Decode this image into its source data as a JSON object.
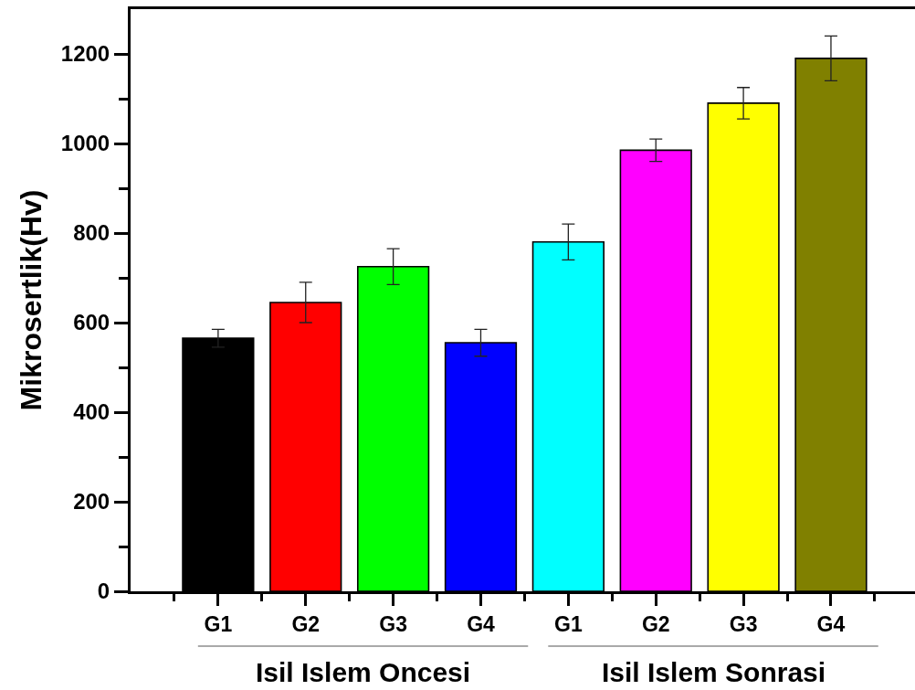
{
  "chart_data": {
    "type": "bar",
    "ylabel": "Mikrosertlik(Hv)",
    "categories": [
      "G1",
      "G2",
      "G3",
      "G4",
      "G1",
      "G2",
      "G3",
      "G4"
    ],
    "values": [
      565,
      645,
      725,
      555,
      780,
      985,
      1090,
      1190
    ],
    "colors": [
      "#000000",
      "#ff0000",
      "#00ff00",
      "#0000ff",
      "#00ffff",
      "#ff00ff",
      "#ffff00",
      "#808000"
    ],
    "errors": [
      20,
      45,
      40,
      30,
      40,
      25,
      35,
      50
    ],
    "ylim": [
      0,
      1300
    ],
    "yticks": [
      0,
      {
        "value": 100,
        "label": null
      },
      200,
      {
        "value": 300,
        "label": null
      },
      400,
      {
        "value": 500,
        "label": null
      },
      600,
      {
        "value": 700,
        "label": null
      },
      800,
      {
        "value": 900,
        "label": null
      },
      1000,
      {
        "value": 1100,
        "label": null
      },
      1200
    ],
    "annotations": [
      "Isil Islem Oncesi",
      "Isil Islem Sonrasi"
    ]
  }
}
